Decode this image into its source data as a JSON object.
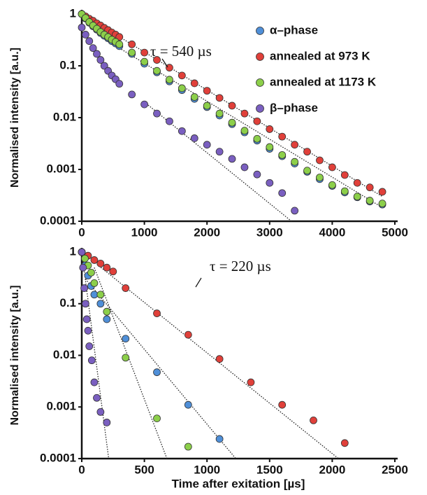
{
  "chart_data": [
    {
      "type": "scatter",
      "yscale": "log",
      "ylabel": "Normalised intensity [a.u.]",
      "xlim": [
        0,
        5000
      ],
      "xticks": [
        0,
        1000,
        2000,
        3000,
        4000,
        5000
      ],
      "ylim": [
        0.0001,
        1
      ],
      "yticks": [
        1,
        0.1,
        0.01,
        0.001,
        0.0001
      ],
      "legend": "upper right",
      "series": [
        {
          "name": "α–phase",
          "color": "#4f8fd8",
          "x": [
            0,
            60,
            120,
            180,
            240,
            300,
            360,
            420,
            480,
            540,
            600,
            800,
            1000,
            1200,
            1400,
            1600,
            1800,
            2000,
            2200,
            2400,
            2600,
            2800,
            3000,
            3200,
            3400,
            3600,
            3800,
            4000,
            4200,
            4400,
            4600,
            4800
          ],
          "values": [
            1,
            0.82,
            0.68,
            0.58,
            0.5,
            0.43,
            0.38,
            0.34,
            0.3,
            0.27,
            0.24,
            0.17,
            0.11,
            0.075,
            0.05,
            0.034,
            0.023,
            0.016,
            0.011,
            0.0075,
            0.0052,
            0.0036,
            0.0025,
            0.0018,
            0.0013,
            0.0009,
            0.00065,
            0.00048,
            0.00036,
            0.00029,
            0.00024,
            0.00021
          ]
        },
        {
          "name": "annealed at 973 K",
          "color": "#e0403a",
          "x": [
            0,
            60,
            120,
            180,
            240,
            300,
            360,
            420,
            480,
            540,
            600,
            800,
            1000,
            1200,
            1400,
            1600,
            1800,
            2000,
            2200,
            2400,
            2600,
            2800,
            3000,
            3200,
            3400,
            3600,
            3800,
            4000,
            4200,
            4400,
            4600,
            4800
          ],
          "values": [
            1,
            0.9,
            0.81,
            0.74,
            0.66,
            0.6,
            0.54,
            0.49,
            0.44,
            0.4,
            0.36,
            0.26,
            0.18,
            0.13,
            0.092,
            0.065,
            0.046,
            0.033,
            0.024,
            0.017,
            0.012,
            0.0085,
            0.006,
            0.0043,
            0.003,
            0.0022,
            0.0015,
            0.0011,
            0.00078,
            0.00055,
            0.00045,
            0.00037
          ]
        },
        {
          "name": "annealed at 1173 K",
          "color": "#8ccf4a",
          "x": [
            0,
            60,
            120,
            180,
            240,
            300,
            360,
            420,
            480,
            540,
            600,
            800,
            1000,
            1200,
            1400,
            1600,
            1800,
            2000,
            2200,
            2400,
            2600,
            2800,
            3000,
            3200,
            3400,
            3600,
            3800,
            4000,
            4200,
            4400,
            4600,
            4800
          ],
          "values": [
            1,
            0.84,
            0.7,
            0.6,
            0.52,
            0.45,
            0.4,
            0.36,
            0.32,
            0.29,
            0.26,
            0.18,
            0.12,
            0.08,
            0.054,
            0.037,
            0.025,
            0.017,
            0.012,
            0.008,
            0.0056,
            0.0039,
            0.0027,
            0.0019,
            0.0014,
            0.00095,
            0.0007,
            0.0005,
            0.00038,
            0.0003,
            0.00025,
            0.00022
          ]
        },
        {
          "name": "β–phase",
          "color": "#7a5fc0",
          "x": [
            0,
            60,
            120,
            180,
            240,
            300,
            360,
            420,
            480,
            540,
            600,
            800,
            1000,
            1200,
            1400,
            1600,
            1800,
            2000,
            2200,
            2400,
            2600,
            2800,
            3000,
            3200,
            3400
          ],
          "values": [
            0.55,
            0.4,
            0.3,
            0.22,
            0.17,
            0.13,
            0.1,
            0.08,
            0.065,
            0.055,
            0.045,
            0.028,
            0.018,
            0.012,
            0.0085,
            0.0055,
            0.004,
            0.003,
            0.0022,
            0.0016,
            0.0011,
            0.0008,
            0.00055,
            0.00035,
            0.00016
          ]
        }
      ],
      "fits": [
        {
          "x": [
            0,
            4800
          ],
          "values": [
            1,
            0.0003
          ]
        },
        {
          "x": [
            600,
            4750
          ],
          "values": [
            0.22,
            0.0002
          ]
        },
        {
          "x": [
            1000,
            3350
          ],
          "values": [
            0.02,
            0.0001
          ]
        }
      ],
      "annotations": [
        {
          "text": "τ = 540 µs"
        }
      ]
    },
    {
      "type": "scatter",
      "yscale": "log",
      "ylabel": "Normalised intensity [a.u.]",
      "xlabel": "Time after exitation [µs]",
      "xlim": [
        0,
        2500
      ],
      "xticks": [
        0,
        500,
        1000,
        1500,
        2000,
        2500
      ],
      "ylim": [
        0.0001,
        1
      ],
      "yticks": [
        1,
        0.1,
        0.01,
        0.001,
        0.0001
      ],
      "series": [
        {
          "color": "#4f8fd8",
          "x": [
            0,
            25,
            50,
            75,
            100,
            150,
            200,
            350,
            600,
            850,
            1100
          ],
          "values": [
            1,
            0.55,
            0.35,
            0.22,
            0.15,
            0.1,
            0.05,
            0.021,
            0.0047,
            0.0011,
            0.00024
          ]
        },
        {
          "color": "#e0403a",
          "x": [
            0,
            50,
            100,
            150,
            200,
            250,
            350,
            600,
            850,
            1100,
            1350,
            1600,
            1850,
            2100
          ],
          "values": [
            1,
            0.85,
            0.7,
            0.6,
            0.5,
            0.42,
            0.2,
            0.065,
            0.025,
            0.0085,
            0.003,
            0.0011,
            0.00055,
            0.0002
          ]
        },
        {
          "color": "#8ccf4a",
          "x": [
            0,
            25,
            50,
            75,
            100,
            150,
            200,
            350,
            600,
            850
          ],
          "values": [
            1,
            0.75,
            0.55,
            0.4,
            0.25,
            0.15,
            0.07,
            0.009,
            0.0006,
            0.00017
          ]
        },
        {
          "color": "#7a5fc0",
          "x": [
            0,
            10,
            20,
            30,
            40,
            50,
            60,
            80,
            100,
            120,
            150,
            200
          ],
          "values": [
            1,
            0.5,
            0.2,
            0.1,
            0.05,
            0.03,
            0.015,
            0.008,
            0.003,
            0.0015,
            0.0008,
            0.0005
          ]
        }
      ],
      "fits": [
        {
          "x": [
            0,
            2050
          ],
          "values": [
            1,
            0.0001
          ]
        },
        {
          "x": [
            30,
            1230
          ],
          "values": [
            0.3,
            0.0001
          ]
        },
        {
          "x": [
            100,
            680
          ],
          "values": [
            0.5,
            0.0001
          ]
        },
        {
          "x": [
            0,
            215
          ],
          "values": [
            1,
            0.0001
          ]
        }
      ],
      "annotations": [
        {
          "text": "τ = 220 µs"
        }
      ]
    }
  ]
}
